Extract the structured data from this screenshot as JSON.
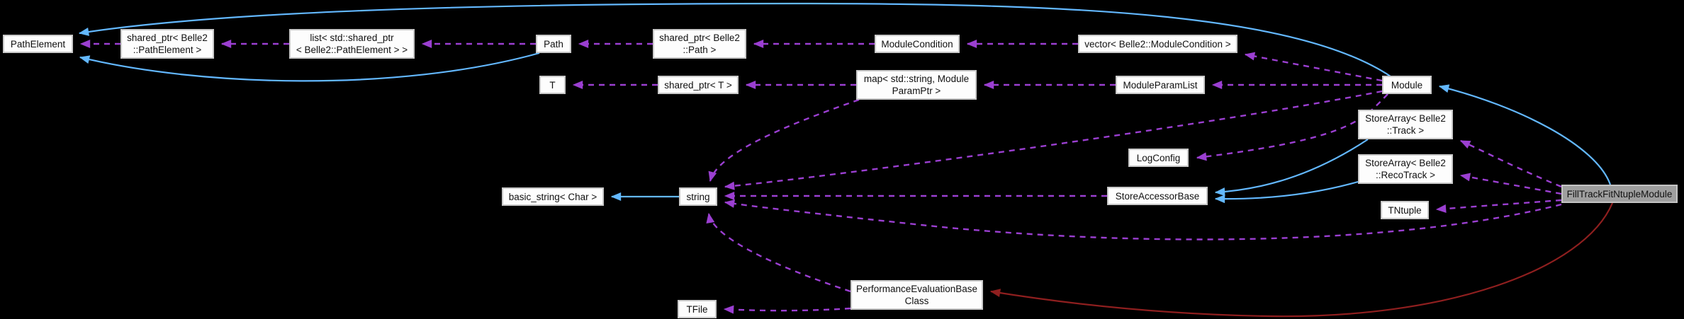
{
  "diagram": {
    "title": "FillTrackFitNtupleModule collaboration graph",
    "background_color": "#000000",
    "node_fill": "#fdfdfd",
    "node_border": "#c9c9c9",
    "node_text_color": "#101010",
    "highlight_node_fill": "#9f9f9f",
    "colors": {
      "inheritance": "#63b8ff",
      "usage": "#9b3fd1",
      "private": "#8f1f1f"
    },
    "nodes": [
      {
        "id": "pathelement",
        "lines": [
          "PathElement"
        ],
        "highlight": false
      },
      {
        "id": "sptr_pathelement",
        "lines": [
          "shared_ptr< Belle2",
          "::PathElement >"
        ],
        "highlight": false
      },
      {
        "id": "list_sptr",
        "lines": [
          "list< std::shared_ptr",
          "< Belle2::PathElement > >"
        ],
        "highlight": false
      },
      {
        "id": "path",
        "lines": [
          "Path"
        ],
        "highlight": false
      },
      {
        "id": "sptr_path",
        "lines": [
          "shared_ptr< Belle2",
          "::Path >"
        ],
        "highlight": false
      },
      {
        "id": "modulecondition",
        "lines": [
          "ModuleCondition"
        ],
        "highlight": false
      },
      {
        "id": "vector_mc",
        "lines": [
          "vector< Belle2::ModuleCondition >"
        ],
        "highlight": false
      },
      {
        "id": "t",
        "lines": [
          "T"
        ],
        "highlight": false
      },
      {
        "id": "sptr_t",
        "lines": [
          "shared_ptr< T >"
        ],
        "highlight": false
      },
      {
        "id": "map_param",
        "lines": [
          "map< std::string, Module",
          "ParamPtr >"
        ],
        "highlight": false
      },
      {
        "id": "moduleparamlist",
        "lines": [
          "ModuleParamList"
        ],
        "highlight": false
      },
      {
        "id": "module",
        "lines": [
          "Module"
        ],
        "highlight": false
      },
      {
        "id": "storearray_track",
        "lines": [
          "StoreArray< Belle2",
          "::Track >"
        ],
        "highlight": false
      },
      {
        "id": "logconfig",
        "lines": [
          "LogConfig"
        ],
        "highlight": false
      },
      {
        "id": "storearray_recotrack",
        "lines": [
          "StoreArray< Belle2",
          "::RecoTrack >"
        ],
        "highlight": false
      },
      {
        "id": "storeaccessorbase",
        "lines": [
          "StoreAccessorBase"
        ],
        "highlight": false
      },
      {
        "id": "tntuple",
        "lines": [
          "TNtuple"
        ],
        "highlight": false
      },
      {
        "id": "fillmodule",
        "lines": [
          "FillTrackFitNtupleModule"
        ],
        "highlight": true
      },
      {
        "id": "basic_string",
        "lines": [
          "basic_string< Char >"
        ],
        "highlight": false
      },
      {
        "id": "string",
        "lines": [
          "string"
        ],
        "highlight": false
      },
      {
        "id": "tfile",
        "lines": [
          "TFile"
        ],
        "highlight": false
      },
      {
        "id": "perfbase",
        "lines": [
          "PerformanceEvaluationBase",
          "Class"
        ],
        "highlight": false
      }
    ],
    "edges": [
      {
        "from": "module",
        "to": "pathelement",
        "type": "inheritance"
      },
      {
        "from": "path",
        "to": "pathelement",
        "type": "inheritance"
      },
      {
        "from": "string",
        "to": "basic_string",
        "type": "inheritance"
      },
      {
        "from": "storearray_track",
        "to": "storeaccessorbase",
        "type": "inheritance"
      },
      {
        "from": "storearray_recotrack",
        "to": "storeaccessorbase",
        "type": "inheritance"
      },
      {
        "from": "fillmodule",
        "to": "module",
        "type": "inheritance"
      },
      {
        "from": "fillmodule",
        "to": "perfbase",
        "type": "private"
      },
      {
        "from": "sptr_pathelement",
        "to": "pathelement",
        "type": "usage"
      },
      {
        "from": "list_sptr",
        "to": "sptr_pathelement",
        "type": "usage"
      },
      {
        "from": "path",
        "to": "list_sptr",
        "type": "usage"
      },
      {
        "from": "sptr_path",
        "to": "path",
        "type": "usage"
      },
      {
        "from": "modulecondition",
        "to": "sptr_path",
        "type": "usage"
      },
      {
        "from": "vector_mc",
        "to": "modulecondition",
        "type": "usage"
      },
      {
        "from": "module",
        "to": "vector_mc",
        "type": "usage"
      },
      {
        "from": "module",
        "to": "moduleparamlist",
        "type": "usage"
      },
      {
        "from": "moduleparamlist",
        "to": "map_param",
        "type": "usage"
      },
      {
        "from": "map_param",
        "to": "sptr_t",
        "type": "usage"
      },
      {
        "from": "sptr_t",
        "to": "t",
        "type": "usage"
      },
      {
        "from": "map_param",
        "to": "string",
        "type": "usage"
      },
      {
        "from": "module",
        "to": "string",
        "type": "usage"
      },
      {
        "from": "module",
        "to": "logconfig",
        "type": "usage"
      },
      {
        "from": "storeaccessorbase",
        "to": "string",
        "type": "usage"
      },
      {
        "from": "fillmodule",
        "to": "storearray_track",
        "type": "usage"
      },
      {
        "from": "fillmodule",
        "to": "storearray_recotrack",
        "type": "usage"
      },
      {
        "from": "fillmodule",
        "to": "tntuple",
        "type": "usage"
      },
      {
        "from": "fillmodule",
        "to": "string",
        "type": "usage"
      },
      {
        "from": "perfbase",
        "to": "string",
        "type": "usage"
      },
      {
        "from": "perfbase",
        "to": "tfile",
        "type": "usage"
      }
    ]
  }
}
